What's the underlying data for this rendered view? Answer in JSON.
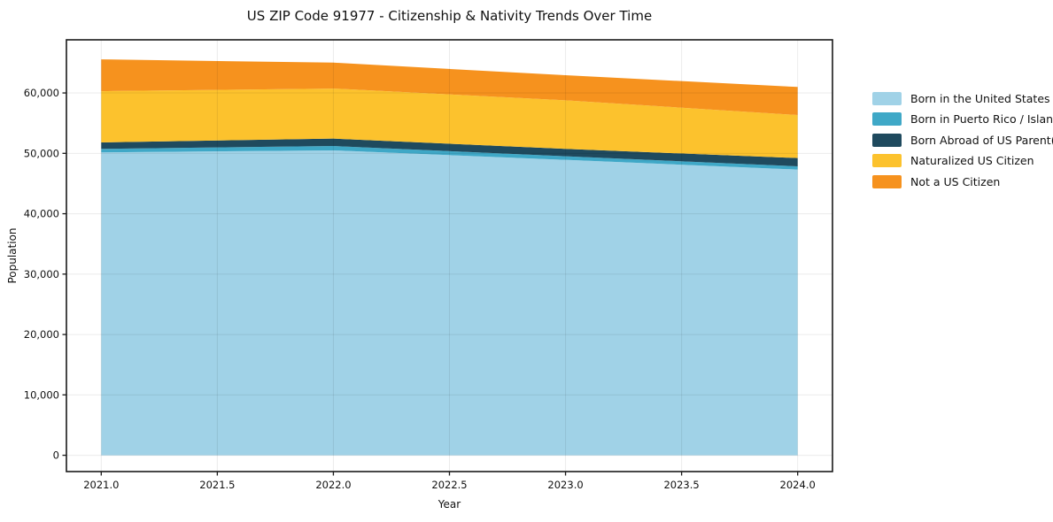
{
  "chart_data": {
    "type": "area",
    "stacked": true,
    "title": "US ZIP Code 91977 - Citizenship & Nativity Trends Over Time",
    "xlabel": "Year",
    "ylabel": "Population",
    "x": [
      2021,
      2022,
      2023,
      2024
    ],
    "series": [
      {
        "name": "Born in the United States",
        "color": "#A0D2E7",
        "values": [
          50150,
          50490,
          48920,
          47310
        ]
      },
      {
        "name": "Born in Puerto Rico / Islands",
        "color": "#3FA8C7",
        "values": [
          590,
          730,
          590,
          540
        ]
      },
      {
        "name": "Born Abroad of US Parent(s)",
        "color": "#1F4A5E",
        "values": [
          1070,
          1220,
          1230,
          1370
        ]
      },
      {
        "name": "Naturalized US Citizen",
        "color": "#FCC22D",
        "values": [
          8480,
          8290,
          8040,
          7120
        ]
      },
      {
        "name": "Not a US Citizen",
        "color": "#F6921E",
        "values": [
          5270,
          4290,
          4150,
          4650
        ]
      }
    ],
    "stack_totals": [
      65560,
      65020,
      62930,
      60990
    ],
    "x_tick_values": [
      2021.0,
      2021.5,
      2022.0,
      2022.5,
      2023.0,
      2023.5,
      2024.0
    ],
    "x_tick_labels": [
      "2021.0",
      "2021.5",
      "2022.0",
      "2022.5",
      "2023.0",
      "2023.5",
      "2024.0"
    ],
    "y_tick_values": [
      0,
      10000,
      20000,
      30000,
      40000,
      50000,
      60000
    ],
    "y_tick_labels": [
      "0",
      "10,000",
      "20,000",
      "30,000",
      "40,000",
      "50,000",
      "60,000"
    ],
    "xlim": [
      2020.85,
      2024.15
    ],
    "ylim": [
      -2700,
      68800
    ],
    "grid": true,
    "legend_position": "right-outside",
    "spine_color": "#1a1a1a",
    "grid_color": "rgba(0,0,0,0.08)"
  }
}
